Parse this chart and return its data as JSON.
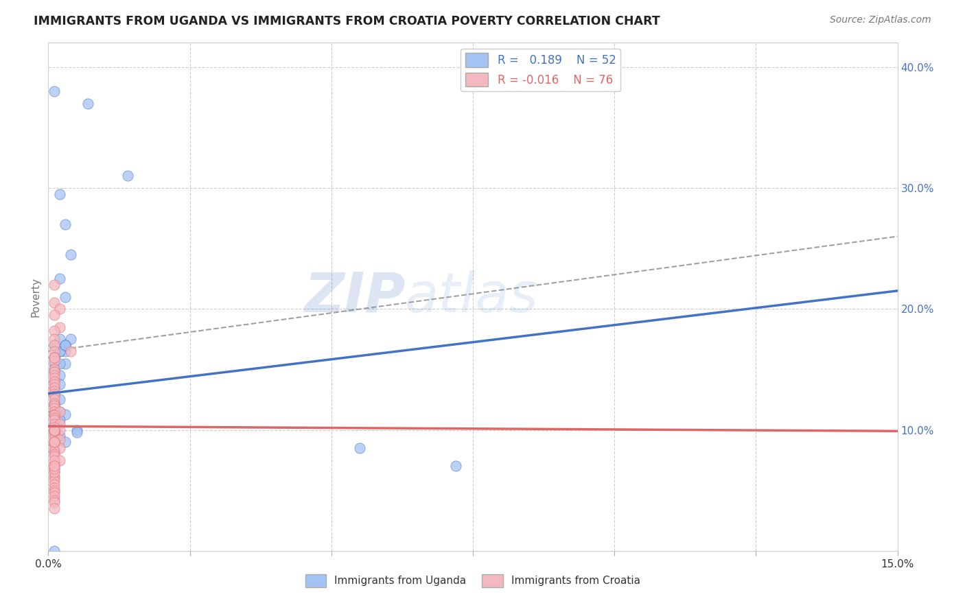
{
  "title": "IMMIGRANTS FROM UGANDA VS IMMIGRANTS FROM CROATIA POVERTY CORRELATION CHART",
  "source": "Source: ZipAtlas.com",
  "ylabel": "Poverty",
  "xlim": [
    0.0,
    0.15
  ],
  "ylim": [
    0.0,
    0.42
  ],
  "ytick_labels_right": [
    "10.0%",
    "20.0%",
    "30.0%",
    "40.0%"
  ],
  "ytick_values_right": [
    0.1,
    0.2,
    0.3,
    0.4
  ],
  "color_uganda": "#a4c2f4",
  "color_croatia": "#f4b8c1",
  "color_uganda_line": "#4472c4",
  "color_croatia_line": "#e06666",
  "R_uganda": 0.189,
  "N_uganda": 52,
  "R_croatia": -0.016,
  "N_croatia": 76,
  "watermark": "ZIPatlas",
  "uganda_line_x0": 0.0,
  "uganda_line_y0": 0.13,
  "uganda_line_x1": 0.15,
  "uganda_line_y1": 0.215,
  "croatia_line_x0": 0.0,
  "croatia_line_y0": 0.103,
  "croatia_line_x1": 0.15,
  "croatia_line_y1": 0.099,
  "dash_line_x0": 0.0,
  "dash_line_y0": 0.165,
  "dash_line_x1": 0.15,
  "dash_line_y1": 0.26,
  "uganda_x": [
    0.001,
    0.007,
    0.014,
    0.002,
    0.003,
    0.004,
    0.003,
    0.002,
    0.004,
    0.003,
    0.003,
    0.002,
    0.002,
    0.002,
    0.001,
    0.001,
    0.003,
    0.002,
    0.001,
    0.001,
    0.002,
    0.001,
    0.002,
    0.001,
    0.001,
    0.001,
    0.001,
    0.002,
    0.001,
    0.001,
    0.002,
    0.001,
    0.003,
    0.001,
    0.001,
    0.002,
    0.003,
    0.003,
    0.001,
    0.001,
    0.001,
    0.001,
    0.001,
    0.005,
    0.005,
    0.002,
    0.003,
    0.001,
    0.055,
    0.001,
    0.072,
    0.001
  ],
  "uganda_y": [
    0.38,
    0.37,
    0.31,
    0.295,
    0.27,
    0.245,
    0.21,
    0.225,
    0.175,
    0.17,
    0.165,
    0.165,
    0.175,
    0.165,
    0.16,
    0.155,
    0.155,
    0.155,
    0.15,
    0.148,
    0.145,
    0.14,
    0.138,
    0.135,
    0.17,
    0.13,
    0.128,
    0.125,
    0.122,
    0.12,
    0.115,
    0.115,
    0.113,
    0.115,
    0.112,
    0.108,
    0.17,
    0.17,
    0.16,
    0.105,
    0.103,
    0.103,
    0.1,
    0.1,
    0.098,
    0.095,
    0.09,
    0.088,
    0.085,
    0.082,
    0.07,
    0.0
  ],
  "croatia_x": [
    0.001,
    0.001,
    0.002,
    0.001,
    0.002,
    0.001,
    0.001,
    0.001,
    0.001,
    0.001,
    0.001,
    0.001,
    0.001,
    0.001,
    0.001,
    0.001,
    0.001,
    0.001,
    0.001,
    0.001,
    0.001,
    0.001,
    0.001,
    0.001,
    0.001,
    0.001,
    0.001,
    0.002,
    0.001,
    0.001,
    0.001,
    0.001,
    0.002,
    0.001,
    0.001,
    0.001,
    0.002,
    0.001,
    0.001,
    0.001,
    0.001,
    0.001,
    0.002,
    0.001,
    0.001,
    0.001,
    0.002,
    0.001,
    0.001,
    0.001,
    0.002,
    0.001,
    0.001,
    0.001,
    0.001,
    0.001,
    0.001,
    0.001,
    0.001,
    0.001,
    0.001,
    0.001,
    0.001,
    0.001,
    0.001,
    0.004,
    0.001,
    0.001,
    0.001,
    0.001,
    0.001,
    0.001,
    0.001,
    0.001,
    0.001,
    0.001
  ],
  "croatia_y": [
    0.22,
    0.205,
    0.2,
    0.195,
    0.185,
    0.182,
    0.175,
    0.17,
    0.165,
    0.16,
    0.157,
    0.15,
    0.148,
    0.145,
    0.143,
    0.14,
    0.138,
    0.135,
    0.132,
    0.13,
    0.128,
    0.125,
    0.122,
    0.12,
    0.118,
    0.115,
    0.113,
    0.115,
    0.112,
    0.11,
    0.108,
    0.105,
    0.105,
    0.102,
    0.1,
    0.1,
    0.1,
    0.098,
    0.098,
    0.097,
    0.095,
    0.093,
    0.092,
    0.09,
    0.088,
    0.085,
    0.085,
    0.082,
    0.08,
    0.078,
    0.075,
    0.072,
    0.07,
    0.068,
    0.065,
    0.062,
    0.06,
    0.058,
    0.055,
    0.052,
    0.05,
    0.048,
    0.045,
    0.042,
    0.04,
    0.165,
    0.09,
    0.035,
    0.1,
    0.09,
    0.065,
    0.075,
    0.068,
    0.07,
    0.1,
    0.16
  ]
}
